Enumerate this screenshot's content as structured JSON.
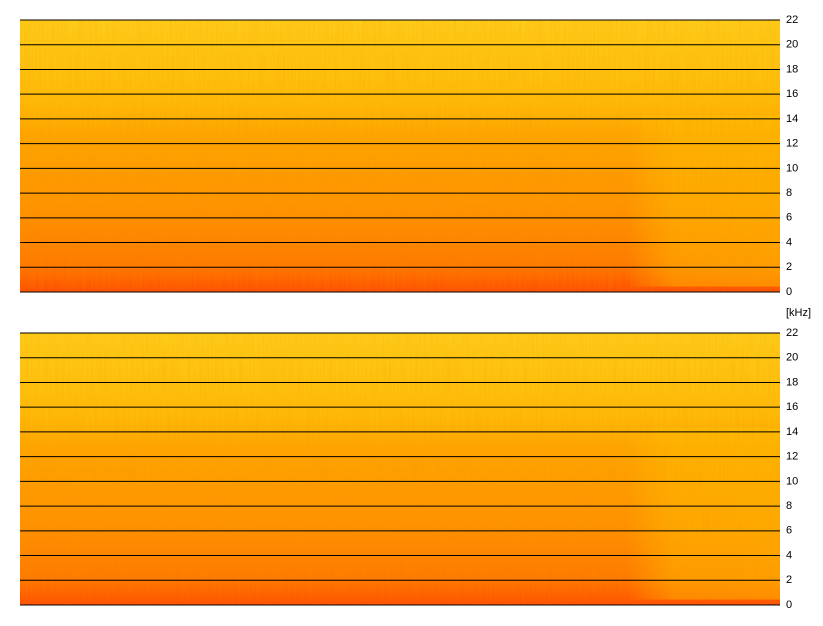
{
  "chart_data": [
    {
      "type": "spectrogram",
      "ylim": [
        0,
        22
      ],
      "yticks": [
        0,
        2,
        4,
        6,
        8,
        10,
        12,
        14,
        16,
        18,
        20,
        22
      ],
      "grid": true
    },
    {
      "type": "spectrogram",
      "ylabel": "[kHz]",
      "ylim": [
        0,
        22
      ],
      "yticks": [
        0,
        2,
        4,
        6,
        8,
        10,
        12,
        14,
        16,
        18,
        20,
        22
      ],
      "grid": true
    }
  ]
}
